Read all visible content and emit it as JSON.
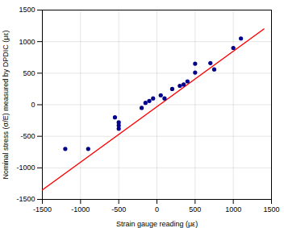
{
  "chart_data": {
    "type": "scatter",
    "xlabel": "Strain gauge reading (με)",
    "ylabel": "Nominal stress (σ/E) measured by DPDIC (με)",
    "series": [
      {
        "type": "scatter",
        "color": "#00008B",
        "x": [
          -1200,
          -900,
          -550,
          -500,
          -500,
          -500,
          -200,
          -150,
          -100,
          -50,
          50,
          100,
          200,
          300,
          350,
          400,
          500,
          500,
          700,
          750,
          1000,
          1100
        ],
        "values": [
          -700,
          -700,
          -200,
          -280,
          -330,
          -380,
          -50,
          30,
          60,
          100,
          150,
          100,
          250,
          300,
          320,
          370,
          510,
          650,
          660,
          560,
          900,
          1050
        ]
      },
      {
        "type": "line",
        "color": "#FF0000",
        "x": [
          -1500,
          1400
        ],
        "values": [
          -1350,
          1200
        ]
      }
    ],
    "xlim": [
      -1500,
      1500
    ],
    "ylim": [
      -1500,
      1500
    ],
    "xticks": [
      -1500,
      -1000,
      -500,
      0,
      500,
      1000,
      1500
    ],
    "yticks": [
      -1500,
      -1000,
      -500,
      0,
      500,
      1000,
      1500
    ],
    "grid": true
  }
}
